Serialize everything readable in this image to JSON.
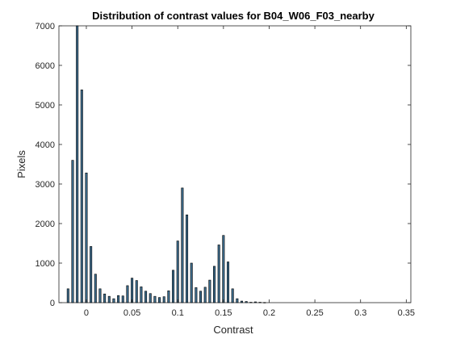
{
  "chart_data": {
    "type": "bar",
    "title": "Distribution of contrast values for B04_W06_F03_nearby",
    "xlabel": "Contrast",
    "ylabel": "Pixels",
    "xlim": [
      -0.03,
      0.355
    ],
    "ylim": [
      0,
      7000
    ],
    "xticks": [
      0,
      0.05,
      0.1,
      0.15,
      0.2,
      0.25,
      0.3,
      0.35
    ],
    "xtick_labels": [
      "0",
      "0.05",
      "0.1",
      "0.15",
      "0.2",
      "0.25",
      "0.3",
      "0.35"
    ],
    "yticks": [
      0,
      1000,
      2000,
      3000,
      4000,
      5000,
      6000,
      7000
    ],
    "ytick_labels": [
      "0",
      "1000",
      "2000",
      "3000",
      "4000",
      "5000",
      "6000",
      "7000"
    ],
    "grid": false,
    "bar_color": "#3d6d8e",
    "bar_edge_color": "#000000",
    "bins": [
      {
        "x": -0.02,
        "value": 350
      },
      {
        "x": -0.015,
        "value": 3600
      },
      {
        "x": -0.01,
        "value": 7000
      },
      {
        "x": -0.005,
        "value": 5380
      },
      {
        "x": 0.0,
        "value": 3280
      },
      {
        "x": 0.005,
        "value": 1420
      },
      {
        "x": 0.01,
        "value": 720
      },
      {
        "x": 0.015,
        "value": 350
      },
      {
        "x": 0.02,
        "value": 220
      },
      {
        "x": 0.025,
        "value": 160
      },
      {
        "x": 0.03,
        "value": 100
      },
      {
        "x": 0.035,
        "value": 180
      },
      {
        "x": 0.04,
        "value": 170
      },
      {
        "x": 0.045,
        "value": 430
      },
      {
        "x": 0.05,
        "value": 620
      },
      {
        "x": 0.055,
        "value": 560
      },
      {
        "x": 0.06,
        "value": 400
      },
      {
        "x": 0.065,
        "value": 290
      },
      {
        "x": 0.07,
        "value": 230
      },
      {
        "x": 0.075,
        "value": 160
      },
      {
        "x": 0.08,
        "value": 130
      },
      {
        "x": 0.085,
        "value": 150
      },
      {
        "x": 0.09,
        "value": 300
      },
      {
        "x": 0.095,
        "value": 820
      },
      {
        "x": 0.1,
        "value": 1560
      },
      {
        "x": 0.105,
        "value": 2900
      },
      {
        "x": 0.11,
        "value": 2220
      },
      {
        "x": 0.115,
        "value": 1000
      },
      {
        "x": 0.12,
        "value": 380
      },
      {
        "x": 0.125,
        "value": 290
      },
      {
        "x": 0.13,
        "value": 390
      },
      {
        "x": 0.135,
        "value": 570
      },
      {
        "x": 0.14,
        "value": 920
      },
      {
        "x": 0.145,
        "value": 1460
      },
      {
        "x": 0.15,
        "value": 1700
      },
      {
        "x": 0.155,
        "value": 1030
      },
      {
        "x": 0.16,
        "value": 350
      },
      {
        "x": 0.165,
        "value": 100
      },
      {
        "x": 0.17,
        "value": 40
      },
      {
        "x": 0.175,
        "value": 30
      },
      {
        "x": 0.18,
        "value": 10
      },
      {
        "x": 0.185,
        "value": 20
      },
      {
        "x": 0.19,
        "value": 10
      },
      {
        "x": 0.195,
        "value": 5
      }
    ]
  }
}
